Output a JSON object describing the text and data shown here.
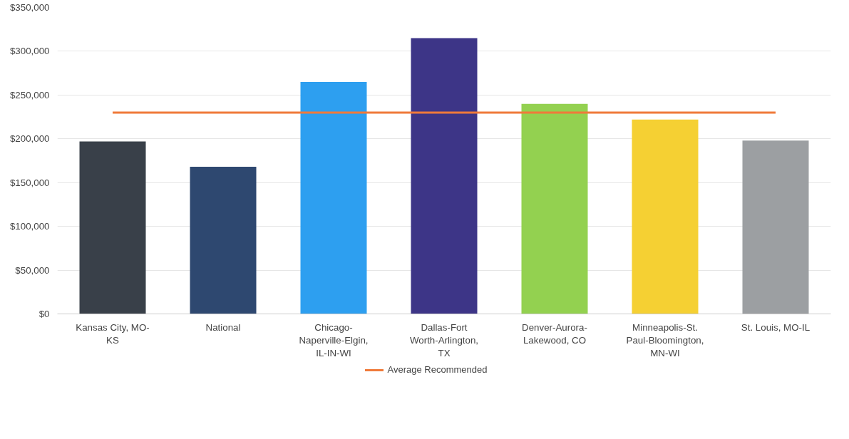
{
  "chart_data": {
    "type": "bar",
    "categories": [
      "Kansas City, MO-KS",
      "National",
      "Chicago-Naperville-Elgin, IL-IN-WI",
      "Dallas-Fort Worth-Arlington, TX",
      "Denver-Aurora-Lakewood, CO",
      "Minneapolis-St. Paul-Bloomington, MN-WI",
      "St. Louis, MO-IL"
    ],
    "series": [
      {
        "colors": [
          "#394049",
          "#2e4870",
          "#2d9ff0",
          "#3d3587",
          "#93d150",
          "#f5d033",
          "#9c9fa2"
        ],
        "values": [
          197000,
          168000,
          265000,
          315000,
          240000,
          222000,
          198000
        ]
      },
      {
        "type": "line",
        "name": "Average Recommended",
        "color": "#f07a3a",
        "values": [
          230000,
          230000,
          230000,
          230000,
          230000,
          230000,
          230000
        ]
      }
    ],
    "ylim": [
      0,
      350000
    ],
    "yticks": [
      {
        "value": 0,
        "label": "$0"
      },
      {
        "value": 50000,
        "label": "$50,000"
      },
      {
        "value": 100000,
        "label": "$100,000"
      },
      {
        "value": 150000,
        "label": "$150,000"
      },
      {
        "value": 200000,
        "label": "$200,000"
      },
      {
        "value": 250000,
        "label": "$250,000"
      },
      {
        "value": 300000,
        "label": "$300,000"
      },
      {
        "value": 350000,
        "label": "$350,000"
      }
    ],
    "grid": "y",
    "legend": "bottom"
  }
}
